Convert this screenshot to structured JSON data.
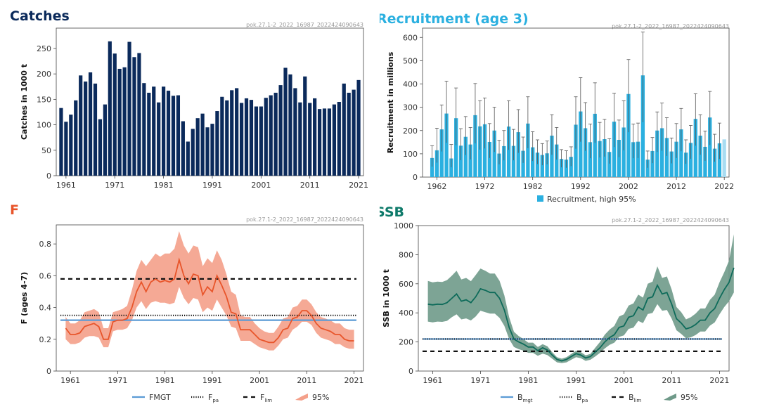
{
  "colors": {
    "catches": "#0b2a5b",
    "recruit": "#2bb0e0",
    "recruit_last": "#a8dcf2",
    "f_line": "#e8552b",
    "f_band": "#f4a08a",
    "ssb_line": "#0e6b5a",
    "ssb_band": "#6f9a89",
    "ref_mgt": "#5b9bd5",
    "ref_dark": "#111111",
    "title_catches": "#0b2a5b",
    "title_recruit": "#2bb0e0",
    "title_f": "#e8552b",
    "title_ssb": "#0e7a6a"
  },
  "stamp": "pok.27.1-2_2022_16987_2022424090643",
  "chart_data": [
    {
      "id": "catches",
      "type": "bar",
      "title": "Catches",
      "xlabel": "",
      "ylabel": "Catches in 1000 t",
      "xlim": [
        1959,
        2022
      ],
      "ylim": [
        0,
        290
      ],
      "yticks": [
        0,
        50,
        100,
        150,
        200,
        250
      ],
      "xticks": [
        1961,
        1971,
        1981,
        1991,
        2001,
        2011,
        2021
      ],
      "x_start": 1960,
      "values": [
        133,
        106,
        120,
        148,
        197,
        185,
        203,
        181,
        111,
        140,
        264,
        240,
        210,
        213,
        263,
        233,
        241,
        182,
        163,
        175,
        144,
        175,
        167,
        157,
        158,
        107,
        67,
        92,
        113,
        122,
        95,
        102,
        127,
        155,
        148,
        168,
        172,
        143,
        152,
        149,
        136,
        136,
        153,
        158,
        163,
        178,
        212,
        199,
        172,
        144,
        195,
        143,
        152,
        131,
        132,
        132,
        140,
        145,
        181,
        163,
        169,
        188
      ]
    },
    {
      "id": "recruitment",
      "type": "bar",
      "title": "Recruitment (age 3)",
      "xlabel": "",
      "ylabel": "Recruitment in millions",
      "xlim": [
        1959,
        2023
      ],
      "ylim": [
        0,
        640
      ],
      "yticks": [
        0,
        100,
        200,
        300,
        400,
        500,
        600
      ],
      "xticks": [
        1962,
        1972,
        1982,
        1992,
        2002,
        2012,
        2022
      ],
      "x_start": 1961,
      "values": [
        82,
        115,
        205,
        273,
        80,
        253,
        135,
        173,
        140,
        266,
        218,
        227,
        151,
        200,
        101,
        133,
        217,
        134,
        193,
        113,
        230,
        128,
        105,
        95,
        102,
        178,
        140,
        78,
        75,
        87,
        225,
        282,
        210,
        150,
        272,
        155,
        163,
        108,
        238,
        160,
        213,
        357,
        150,
        152,
        437,
        75,
        112,
        200,
        210,
        168,
        110,
        152,
        205,
        105,
        147,
        250,
        178,
        130,
        256,
        122,
        145,
        162
      ],
      "upper": [
        135,
        210,
        310,
        412,
        140,
        383,
        208,
        260,
        213,
        402,
        328,
        340,
        230,
        300,
        158,
        200,
        328,
        205,
        290,
        172,
        345,
        195,
        160,
        144,
        155,
        268,
        213,
        118,
        113,
        130,
        345,
        427,
        320,
        228,
        405,
        235,
        248,
        165,
        360,
        245,
        328,
        505,
        228,
        232,
        623,
        112,
        170,
        280,
        318,
        255,
        168,
        230,
        295,
        160,
        222,
        358,
        268,
        198,
        368,
        184,
        232,
        162
      ],
      "lower": [
        45,
        62,
        110,
        147,
        42,
        137,
        73,
        95,
        76,
        145,
        118,
        123,
        82,
        108,
        55,
        72,
        117,
        72,
        104,
        61,
        124,
        69,
        56,
        51,
        55,
        96,
        75,
        42,
        40,
        47,
        122,
        152,
        113,
        81,
        147,
        84,
        88,
        58,
        129,
        86,
        115,
        193,
        81,
        82,
        236,
        40,
        60,
        108,
        113,
        91,
        59,
        82,
        111,
        57,
        79,
        135,
        96,
        70,
        138,
        66,
        78,
        162
      ],
      "legend": [
        "Recruitment",
        "high 95%"
      ]
    },
    {
      "id": "F",
      "type": "line",
      "title": "F",
      "xlabel": "",
      "ylabel": "F (ages 4-7)",
      "xlim": [
        1958,
        2023
      ],
      "ylim": [
        0,
        0.92
      ],
      "yticks": [
        0,
        0.2,
        0.4,
        0.6,
        0.8
      ],
      "xticks": [
        1961,
        1971,
        1981,
        1991,
        2001,
        2011,
        2021
      ],
      "x_start": 1960,
      "values": [
        0.27,
        0.23,
        0.23,
        0.24,
        0.28,
        0.29,
        0.3,
        0.28,
        0.2,
        0.2,
        0.31,
        0.32,
        0.32,
        0.33,
        0.4,
        0.5,
        0.56,
        0.5,
        0.56,
        0.58,
        0.56,
        0.57,
        0.56,
        0.58,
        0.7,
        0.6,
        0.55,
        0.61,
        0.6,
        0.48,
        0.53,
        0.5,
        0.6,
        0.54,
        0.47,
        0.37,
        0.36,
        0.26,
        0.26,
        0.26,
        0.23,
        0.2,
        0.19,
        0.18,
        0.18,
        0.21,
        0.26,
        0.27,
        0.33,
        0.34,
        0.38,
        0.38,
        0.35,
        0.3,
        0.27,
        0.26,
        0.25,
        0.23,
        0.23,
        0.2,
        0.19,
        0.19
      ],
      "upper": [
        0.34,
        0.3,
        0.3,
        0.32,
        0.37,
        0.38,
        0.39,
        0.37,
        0.27,
        0.27,
        0.37,
        0.38,
        0.39,
        0.41,
        0.51,
        0.63,
        0.7,
        0.66,
        0.7,
        0.74,
        0.72,
        0.74,
        0.74,
        0.77,
        0.88,
        0.79,
        0.74,
        0.79,
        0.78,
        0.66,
        0.71,
        0.68,
        0.76,
        0.7,
        0.61,
        0.5,
        0.48,
        0.35,
        0.34,
        0.34,
        0.3,
        0.27,
        0.25,
        0.24,
        0.24,
        0.28,
        0.33,
        0.34,
        0.4,
        0.41,
        0.45,
        0.45,
        0.42,
        0.37,
        0.34,
        0.33,
        0.32,
        0.3,
        0.3,
        0.27,
        0.26,
        0.26
      ],
      "lower": [
        0.2,
        0.17,
        0.17,
        0.18,
        0.21,
        0.22,
        0.22,
        0.21,
        0.15,
        0.15,
        0.25,
        0.26,
        0.26,
        0.27,
        0.32,
        0.4,
        0.44,
        0.39,
        0.43,
        0.44,
        0.43,
        0.43,
        0.42,
        0.43,
        0.53,
        0.46,
        0.42,
        0.46,
        0.45,
        0.37,
        0.4,
        0.38,
        0.45,
        0.4,
        0.35,
        0.28,
        0.27,
        0.19,
        0.19,
        0.19,
        0.17,
        0.15,
        0.14,
        0.13,
        0.13,
        0.16,
        0.2,
        0.21,
        0.26,
        0.28,
        0.31,
        0.31,
        0.29,
        0.24,
        0.21,
        0.2,
        0.19,
        0.17,
        0.17,
        0.15,
        0.14,
        0.14
      ],
      "ref_lines": [
        {
          "name": "FMGT",
          "value": 0.32,
          "style": "solid"
        },
        {
          "name": "Fpa",
          "value": 0.35,
          "style": "dotted"
        },
        {
          "name": "Flim",
          "value": 0.58,
          "style": "dashed"
        }
      ],
      "legend": [
        {
          "main": "FMGT",
          "sub": ""
        },
        {
          "main": "F",
          "sub": "pa"
        },
        {
          "main": "F",
          "sub": "lim"
        },
        {
          "main": "95%",
          "sub": ""
        }
      ]
    },
    {
      "id": "SSB",
      "type": "line",
      "title": "SSB",
      "xlabel": "",
      "ylabel": "SSB in 1000 t",
      "xlim": [
        1958,
        2023
      ],
      "ylim": [
        0,
        1000
      ],
      "yticks": [
        0,
        200,
        400,
        600,
        800,
        1000
      ],
      "xticks": [
        1961,
        1971,
        1981,
        1991,
        2001,
        2011,
        2021
      ],
      "x_start": 1960,
      "values": [
        460,
        455,
        460,
        458,
        470,
        500,
        530,
        480,
        490,
        470,
        510,
        565,
        555,
        540,
        540,
        500,
        420,
        300,
        220,
        200,
        185,
        165,
        165,
        140,
        160,
        145,
        110,
        80,
        70,
        80,
        100,
        120,
        110,
        90,
        100,
        130,
        160,
        200,
        230,
        250,
        300,
        310,
        370,
        380,
        440,
        420,
        500,
        510,
        590,
        530,
        540,
        460,
        360,
        330,
        290,
        300,
        320,
        350,
        350,
        400,
        430,
        500,
        560,
        610,
        710
      ],
      "upper": [
        620,
        610,
        615,
        612,
        625,
        655,
        690,
        630,
        640,
        618,
        660,
        705,
        690,
        670,
        670,
        620,
        520,
        370,
        270,
        240,
        220,
        195,
        195,
        165,
        185,
        170,
        130,
        95,
        85,
        95,
        118,
        140,
        130,
        108,
        118,
        160,
        200,
        250,
        285,
        310,
        375,
        390,
        450,
        465,
        525,
        505,
        600,
        615,
        720,
        640,
        650,
        560,
        440,
        405,
        355,
        370,
        395,
        430,
        430,
        490,
        525,
        610,
        680,
        760,
        940
      ],
      "lower": [
        340,
        335,
        340,
        338,
        345,
        370,
        390,
        355,
        362,
        348,
        375,
        415,
        405,
        395,
        395,
        365,
        310,
        220,
        165,
        150,
        140,
        125,
        125,
        105,
        120,
        110,
        85,
        60,
        55,
        60,
        78,
        95,
        88,
        70,
        78,
        100,
        125,
        155,
        180,
        195,
        235,
        245,
        290,
        298,
        345,
        330,
        392,
        400,
        460,
        415,
        420,
        360,
        280,
        255,
        225,
        232,
        248,
        272,
        272,
        312,
        335,
        390,
        440,
        480,
        540
      ],
      "ref_lines": [
        {
          "name": "Bmgt",
          "value": 220,
          "style": "solid"
        },
        {
          "name": "Bpa",
          "value": 220,
          "style": "dotted"
        },
        {
          "name": "Blim",
          "value": 136,
          "style": "dashed"
        }
      ],
      "legend": [
        {
          "main": "B",
          "sub": "mgt"
        },
        {
          "main": "B",
          "sub": "pa"
        },
        {
          "main": "B",
          "sub": "lim"
        },
        {
          "main": "95%",
          "sub": ""
        }
      ]
    }
  ]
}
